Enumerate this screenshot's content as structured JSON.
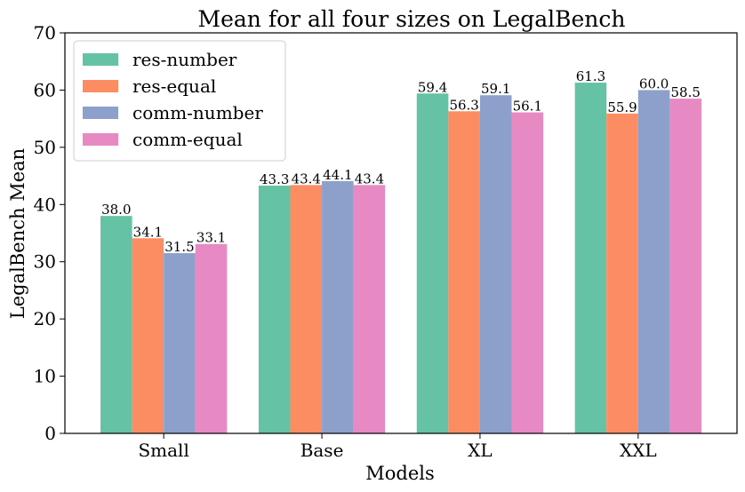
{
  "chart_data": {
    "type": "bar",
    "title": "Mean for all four sizes on LegalBench",
    "xlabel": "Models",
    "ylabel": "LegalBench Mean",
    "categories": [
      "Small",
      "Base",
      "XL",
      "XXL"
    ],
    "ylim": [
      0,
      70
    ],
    "yticks": [
      0,
      10,
      20,
      30,
      40,
      50,
      60,
      70
    ],
    "legend_position": "top-left",
    "grid": false,
    "series": [
      {
        "name": "res-number",
        "color": "#66c2a5",
        "values": [
          38.0,
          43.3,
          59.4,
          61.3
        ],
        "labels": [
          "38.0",
          "43.3",
          "59.4",
          "61.3"
        ]
      },
      {
        "name": "res-equal",
        "color": "#fc8d62",
        "values": [
          34.1,
          43.4,
          56.3,
          55.9
        ],
        "labels": [
          "34.1",
          "43.4",
          "56.3",
          "55.9"
        ]
      },
      {
        "name": "comm-number",
        "color": "#8da0cb",
        "values": [
          31.5,
          44.1,
          59.1,
          60.0
        ],
        "labels": [
          "31.5",
          "44.1",
          "59.1",
          "60.0"
        ]
      },
      {
        "name": "comm-equal",
        "color": "#e78ac3",
        "values": [
          33.1,
          43.4,
          56.1,
          58.5
        ],
        "labels": [
          "33.1",
          "43.4",
          "56.1",
          "58.5"
        ]
      }
    ]
  }
}
